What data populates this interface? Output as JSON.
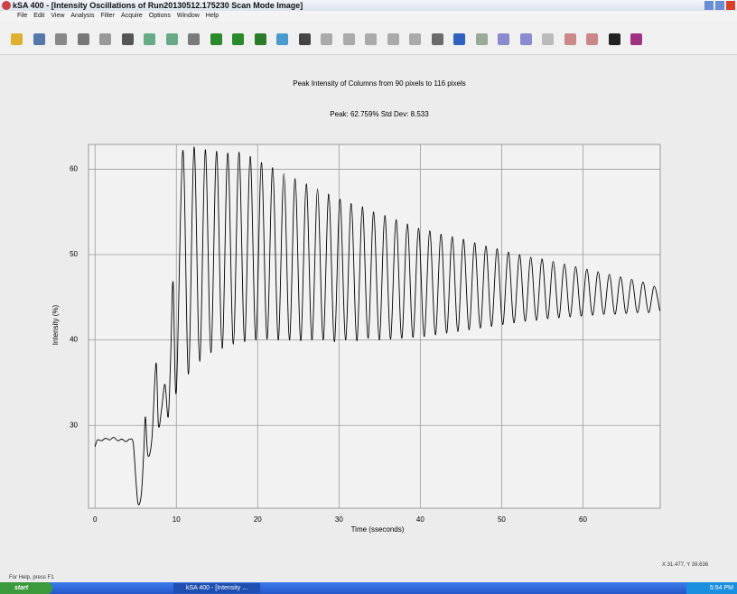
{
  "window": {
    "title": "kSA 400 - [Intensity Oscillations of Run20130512.175230 Scan Mode Image]",
    "menu": [
      "File",
      "Edit",
      "View",
      "Analysis",
      "Filter",
      "Acquire",
      "Options",
      "Window",
      "Help"
    ],
    "status_help": "For Help, press F1",
    "status_coords": "X 31.477, Y 39.636",
    "start": "start",
    "task": "kSA 400 - [Intensity ...",
    "clock": "5:54 PM"
  },
  "chart_data": {
    "type": "line",
    "title": "Peak Intensity of Columns from 90 pixels to 116 pixels",
    "subtitle": "Peak: 62.759%    Std Dev: 8.533",
    "xlabel": "Time (sseconds)",
    "ylabel": "Intensity (%)",
    "color": "#000000",
    "grid": true,
    "xlim": [
      -0.8,
      69.5
    ],
    "ylim": [
      20.3,
      62.9
    ],
    "xticks": [
      0,
      10,
      20,
      30,
      40,
      50,
      60
    ],
    "yticks": [
      30,
      40,
      50,
      60
    ],
    "x": [
      0,
      0.3,
      0.8,
      1.3,
      1.8,
      2.3,
      2.8,
      3.3,
      3.8,
      4.3,
      4.7,
      5.0,
      5.3,
      5.7,
      6.0,
      6.2,
      6.5,
      7.0,
      7.5,
      7.8,
      8.2,
      8.6,
      9.0,
      9.3,
      9.6,
      10.0,
      10.8,
      11.49,
      12.18,
      12.87,
      13.56,
      14.25,
      14.94,
      15.63,
      16.32,
      17.01,
      17.7,
      18.39,
      19.08,
      19.77,
      20.46,
      21.15,
      21.84,
      22.53,
      23.22,
      23.91,
      24.6,
      25.29,
      25.98,
      26.67,
      27.36,
      28.05,
      28.74,
      29.43,
      30.12,
      30.81,
      31.5,
      32.19,
      32.88,
      33.57,
      34.26,
      34.95,
      35.64,
      36.33,
      37.02,
      37.71,
      38.4,
      39.09,
      39.78,
      40.47,
      41.16,
      41.85,
      42.54,
      43.23,
      43.92,
      44.61,
      45.3,
      45.99,
      46.68,
      47.37,
      48.06,
      48.75,
      49.44,
      50.13,
      50.82,
      51.51,
      52.2,
      52.89,
      53.58,
      54.27,
      54.96,
      55.65,
      56.34,
      57.03,
      57.72,
      58.41,
      59.1,
      59.79,
      60.48,
      61.17,
      61.86,
      62.55,
      63.24,
      63.93,
      64.62,
      65.31,
      66.0,
      66.69,
      67.38,
      68.07,
      68.76,
      69.45
    ],
    "values": [
      27.5,
      28.3,
      28.2,
      28.5,
      28.3,
      28.6,
      28.2,
      28.4,
      28.1,
      28.4,
      27.9,
      24.0,
      20.8,
      22.0,
      27.0,
      31.0,
      26.5,
      28.5,
      37.3,
      30.0,
      32.0,
      34.8,
      31.0,
      38.0,
      46.8,
      34.0,
      62.2,
      36.0,
      62.6,
      37.5,
      62.3,
      38.5,
      62.1,
      39.0,
      61.9,
      39.5,
      62.0,
      39.8,
      61.5,
      40.0,
      60.8,
      40.1,
      60.2,
      40.0,
      59.5,
      40.0,
      58.9,
      39.9,
      58.3,
      40.0,
      57.7,
      40.0,
      57.1,
      39.8,
      56.5,
      40.0,
      56.0,
      39.9,
      55.6,
      40.2,
      55.0,
      40.0,
      54.6,
      40.1,
      54.1,
      40.2,
      53.6,
      40.3,
      53.1,
      40.4,
      52.8,
      40.6,
      52.4,
      40.8,
      52.1,
      41.0,
      51.8,
      41.2,
      51.4,
      41.4,
      51.0,
      41.6,
      50.7,
      41.8,
      50.3,
      42.0,
      50.0,
      42.2,
      49.7,
      42.3,
      49.5,
      42.5,
      49.2,
      42.6,
      48.9,
      42.7,
      48.6,
      42.8,
      48.3,
      42.9,
      48.0,
      43.0,
      47.7,
      43.0,
      47.4,
      43.1,
      47.1,
      43.2,
      46.8,
      43.2,
      46.3,
      43.4
    ]
  }
}
